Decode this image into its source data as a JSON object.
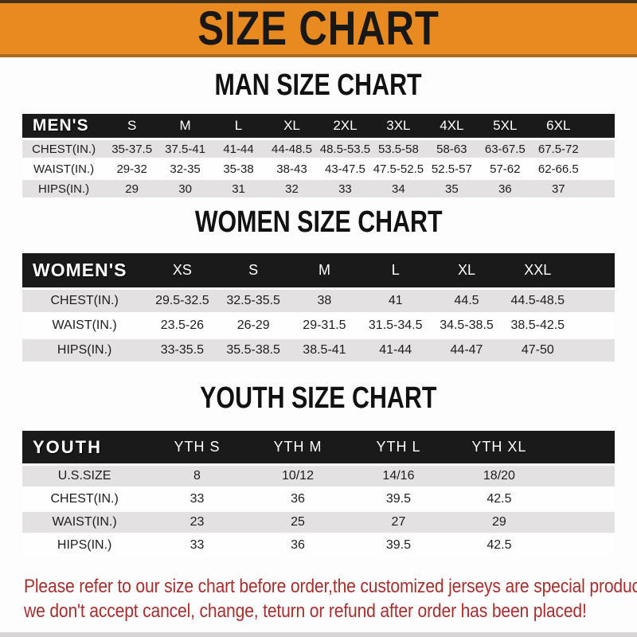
{
  "banner": {
    "title": "SIZE CHART"
  },
  "sections": [
    {
      "heading": "MAN SIZE CHART",
      "header_label": "MEN'S",
      "columns": [
        "S",
        "M",
        "L",
        "XL",
        "2XL",
        "3XL",
        "4XL",
        "5XL",
        "6XL"
      ],
      "rows": [
        {
          "label": "CHEST(IN.)",
          "values": [
            "35-37.5",
            "37.5-41",
            "41-44",
            "44-48.5",
            "48.5-53.5",
            "53.5-58",
            "58-63",
            "63-67.5",
            "67.5-72"
          ]
        },
        {
          "label": "WAIST(IN.)",
          "values": [
            "29-32",
            "32-35",
            "35-38",
            "38-43",
            "43-47.5",
            "47.5-52.5",
            "52.5-57",
            "57-62",
            "62-66.5"
          ]
        },
        {
          "label": "HIPS(IN.)",
          "values": [
            "29",
            "30",
            "31",
            "32",
            "33",
            "34",
            "35",
            "36",
            "37"
          ]
        }
      ]
    },
    {
      "heading": "WOMEN SIZE CHART",
      "header_label": "WOMEN'S",
      "columns": [
        "XS",
        "S",
        "M",
        "L",
        "XL",
        "XXL"
      ],
      "rows": [
        {
          "label": "CHEST(IN.)",
          "values": [
            "29.5-32.5",
            "32.5-35.5",
            "38",
            "41",
            "44.5",
            "44.5-48.5"
          ]
        },
        {
          "label": "WAIST(IN.)",
          "values": [
            "23.5-26",
            "26-29",
            "29-31.5",
            "31.5-34.5",
            "34.5-38.5",
            "38.5-42.5"
          ]
        },
        {
          "label": "HIPS(IN.)",
          "values": [
            "33-35.5",
            "35.5-38.5",
            "38.5-41",
            "41-44",
            "44-47",
            "47-50"
          ]
        }
      ]
    },
    {
      "heading": "YOUTH SIZE CHART",
      "header_label": "YOUTH",
      "columns": [
        "YTH S",
        "YTH M",
        "YTH L",
        "YTH XL"
      ],
      "rows": [
        {
          "label": "U.S.SIZE",
          "values": [
            "8",
            "10/12",
            "14/16",
            "18/20"
          ]
        },
        {
          "label": "CHEST(IN.)",
          "values": [
            "33",
            "36",
            "39.5",
            "42.5"
          ]
        },
        {
          "label": "WAIST(IN.)",
          "values": [
            "23",
            "25",
            "27",
            "29"
          ]
        },
        {
          "label": "HIPS(IN.)",
          "values": [
            "33",
            "36",
            "39.5",
            "42.5"
          ]
        }
      ]
    }
  ],
  "disclaimer": {
    "line1": "Please refer to our size chart before order,the customized jerseys are special products,",
    "line2": "we don't accept cancel, change, teturn or refund after order has been placed!"
  },
  "colors": {
    "banner_bg": "#E98A20",
    "banner_text": "#181818",
    "bar_bg": "#1A1A1A",
    "bar_text": "#FFFFFF",
    "row_alt_bg": "#E3E1E1",
    "disclaimer_red": "#A33030"
  }
}
